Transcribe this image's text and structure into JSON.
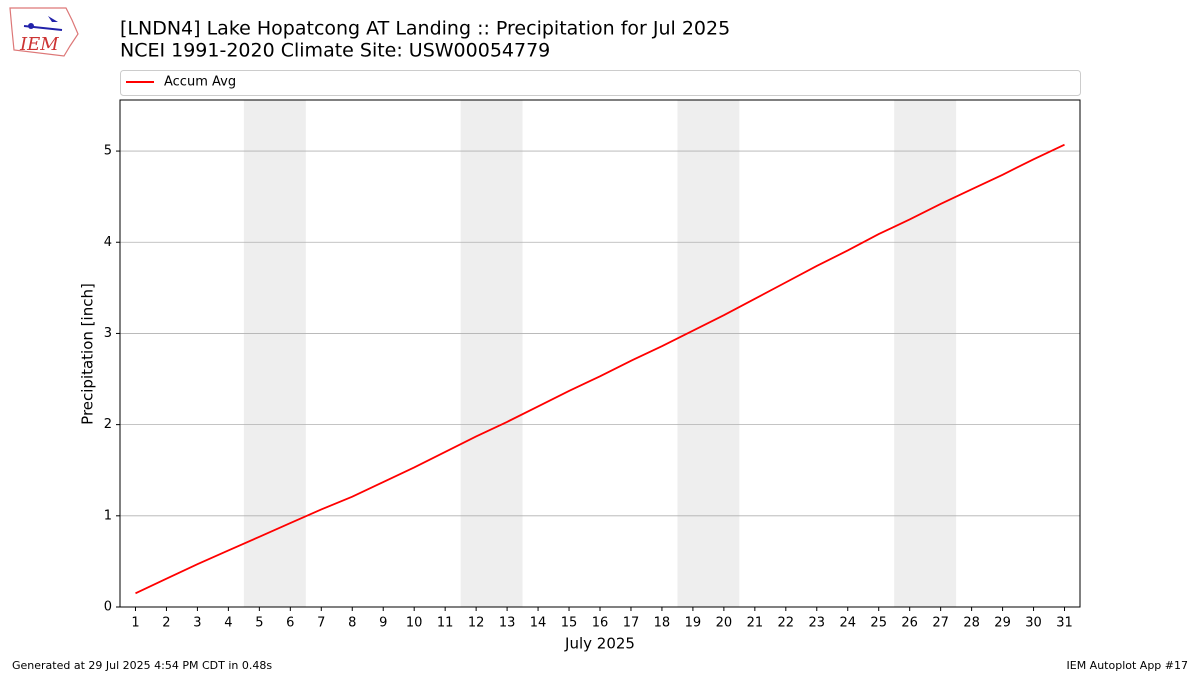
{
  "chart_data": {
    "type": "line",
    "title": "[LNDN4] Lake Hopatcong  AT Landing :: Precipitation for Jul 2025",
    "subtitle": "NCEI 1991-2020 Climate Site: USW00054779",
    "xlabel": "July 2025",
    "ylabel": "Precipitation [inch]",
    "x": [
      1,
      2,
      3,
      4,
      5,
      6,
      7,
      8,
      9,
      10,
      11,
      12,
      13,
      14,
      15,
      16,
      17,
      18,
      19,
      20,
      21,
      22,
      23,
      24,
      25,
      26,
      27,
      28,
      29,
      30,
      31
    ],
    "series": [
      {
        "name": "Accum Avg",
        "color": "#ff0000",
        "values": [
          0.15,
          0.31,
          0.47,
          0.62,
          0.77,
          0.92,
          1.07,
          1.21,
          1.37,
          1.53,
          1.7,
          1.87,
          2.03,
          2.2,
          2.37,
          2.53,
          2.7,
          2.86,
          3.03,
          3.2,
          3.38,
          3.56,
          3.74,
          3.91,
          4.09,
          4.25,
          4.42,
          4.58,
          4.74,
          4.91,
          5.07
        ]
      }
    ],
    "shaded_spans": [
      [
        4.5,
        6.5
      ],
      [
        11.5,
        13.5
      ],
      [
        18.5,
        20.5
      ],
      [
        25.5,
        27.5
      ]
    ],
    "shade_color": "#eeeeee",
    "xlim": [
      0.5,
      31.5
    ],
    "ylim": [
      0,
      5.56
    ],
    "xticks": [
      1,
      2,
      3,
      4,
      5,
      6,
      7,
      8,
      9,
      10,
      11,
      12,
      13,
      14,
      15,
      16,
      17,
      18,
      19,
      20,
      21,
      22,
      23,
      24,
      25,
      26,
      27,
      28,
      29,
      30,
      31
    ],
    "yticks": [
      0,
      1,
      2,
      3,
      4,
      5
    ],
    "grid": true,
    "legend": "top"
  },
  "logo_text": "IEM",
  "footer_left": "Generated at 29 Jul 2025 4:54 PM CDT in 0.48s",
  "footer_right": "IEM Autoplot App #17"
}
